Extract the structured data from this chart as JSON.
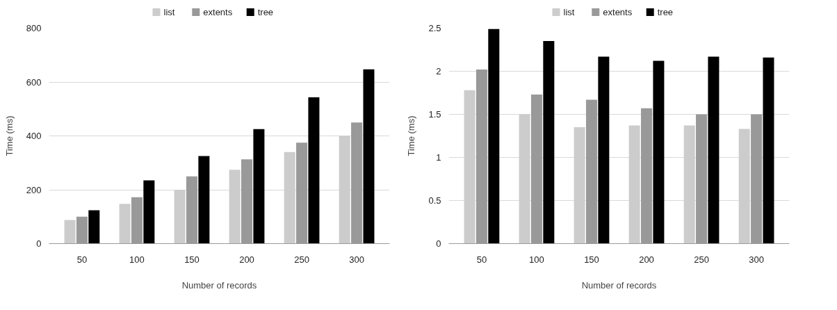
{
  "chart_data": [
    {
      "type": "bar",
      "xlabel": "Number of records",
      "ylabel": "Time (ms)",
      "categories": [
        "50",
        "100",
        "150",
        "200",
        "250",
        "300"
      ],
      "series": [
        {
          "name": "list",
          "color": "#cccccc",
          "values": [
            88,
            148,
            200,
            274,
            340,
            400
          ]
        },
        {
          "name": "extents",
          "color": "#999999",
          "values": [
            100,
            172,
            250,
            313,
            375,
            450
          ]
        },
        {
          "name": "tree",
          "color": "#000000",
          "values": [
            124,
            235,
            325,
            425,
            543,
            647
          ]
        }
      ],
      "ylim": [
        0,
        800
      ],
      "yticks": [
        0,
        200,
        400,
        600,
        800
      ],
      "grid": "y",
      "legend": "top"
    },
    {
      "type": "bar",
      "xlabel": "Number of records",
      "ylabel": "Time (ms)",
      "categories": [
        "50",
        "100",
        "150",
        "200",
        "250",
        "300"
      ],
      "series": [
        {
          "name": "list",
          "color": "#cccccc",
          "values": [
            1.78,
            1.5,
            1.35,
            1.37,
            1.37,
            1.33
          ]
        },
        {
          "name": "extents",
          "color": "#999999",
          "values": [
            2.02,
            1.73,
            1.67,
            1.57,
            1.5,
            1.5
          ]
        },
        {
          "name": "tree",
          "color": "#000000",
          "values": [
            2.49,
            2.35,
            2.17,
            2.12,
            2.17,
            2.16
          ]
        }
      ],
      "ylim": [
        0,
        2.5
      ],
      "yticks": [
        0,
        0.5,
        1,
        1.5,
        2,
        2.5
      ],
      "grid": "y",
      "legend": "top"
    }
  ]
}
